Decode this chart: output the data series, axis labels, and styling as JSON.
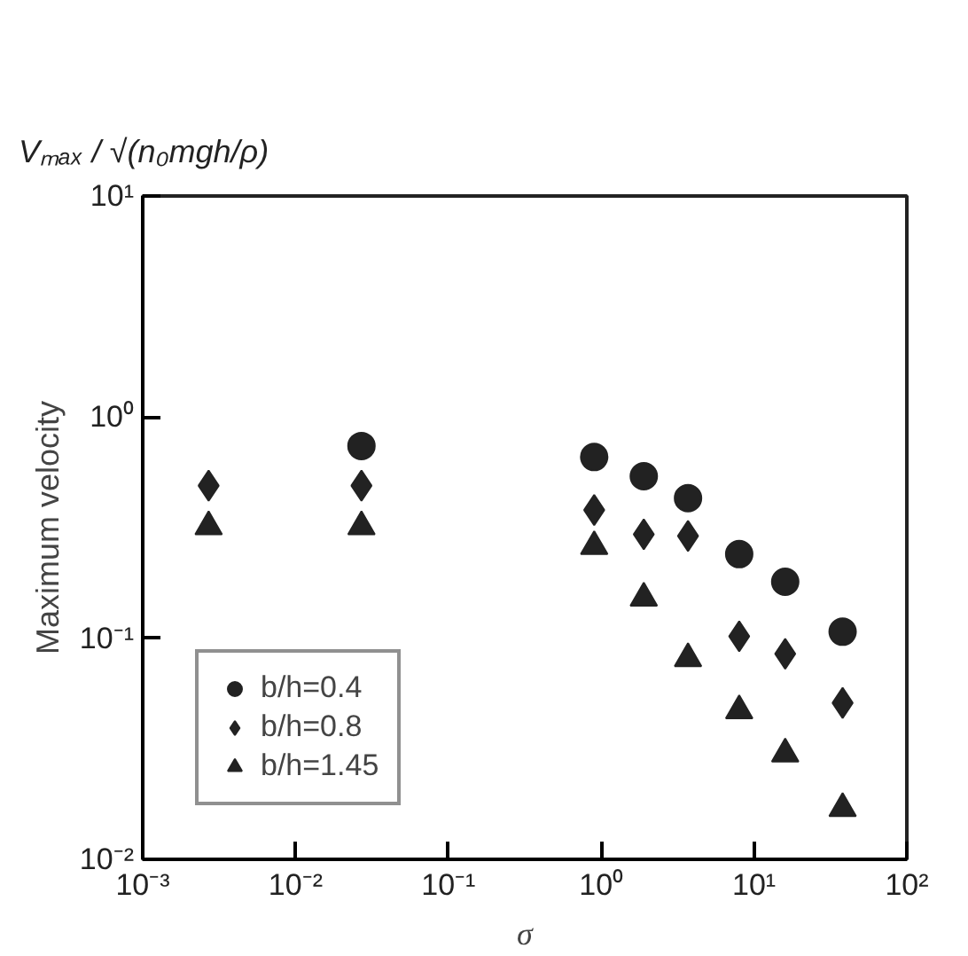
{
  "chart_data": {
    "type": "scatter",
    "xlabel": "σ",
    "ylabel": "Maximum velocity",
    "annotations": [
      "Vₘₐₓ / √(n₀mgh/ρ)"
    ],
    "log": "xy",
    "xlim": [
      0.001,
      100
    ],
    "ylim": [
      0.01,
      10
    ],
    "xticks": [
      {
        "value": 0.001,
        "label": "10⁻³"
      },
      {
        "value": 0.01,
        "label": "10⁻²"
      },
      {
        "value": 0.1,
        "label": "10⁻¹"
      },
      {
        "value": 1,
        "label": "10⁰"
      },
      {
        "value": 10,
        "label": "10¹"
      },
      {
        "value": 100,
        "label": "10²"
      }
    ],
    "yticks": [
      {
        "value": 0.01,
        "label": "10⁻²"
      },
      {
        "value": 0.1,
        "label": "10⁻¹"
      },
      {
        "value": 1,
        "label": "10⁰"
      },
      {
        "value": 10,
        "label": "10¹"
      }
    ],
    "grid": false,
    "legend": "bottom left",
    "series": [
      {
        "name": "b/h=0.4",
        "color": "#222222",
        "marker": "circle",
        "x": [
          0.027,
          0.9,
          1.9,
          3.7,
          8,
          16,
          38
        ],
        "values": [
          0.74,
          0.66,
          0.54,
          0.43,
          0.24,
          0.18,
          0.107
        ]
      },
      {
        "name": "b/h=0.8",
        "color": "#222222",
        "marker": "diamond",
        "x": [
          0.0027,
          0.027,
          0.9,
          1.9,
          3.7,
          8,
          16,
          38
        ],
        "values": [
          0.49,
          0.49,
          0.38,
          0.295,
          0.29,
          0.102,
          0.085,
          0.051
        ]
      },
      {
        "name": "b/h=1.45",
        "color": "#222222",
        "marker": "triangle",
        "x": [
          0.0027,
          0.027,
          0.9,
          1.9,
          3.7,
          8,
          16,
          38
        ],
        "values": [
          0.32,
          0.32,
          0.26,
          0.152,
          0.081,
          0.047,
          0.03,
          0.017
        ]
      }
    ]
  }
}
